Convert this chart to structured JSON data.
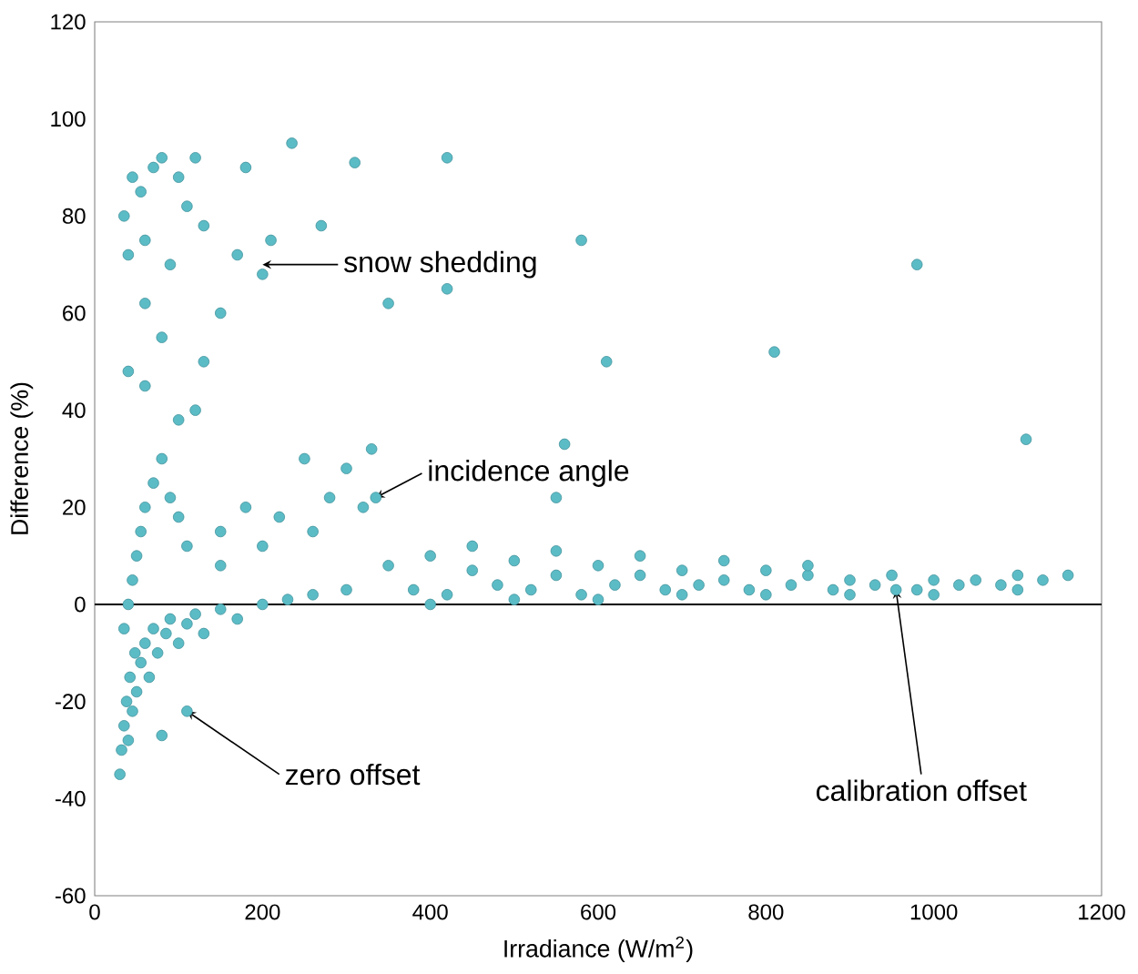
{
  "chart_data": {
    "type": "scatter",
    "xlabel": "Irradiance (W/m$^{2}$)",
    "ylabel": "Difference (%)",
    "x": [
      30,
      32,
      35,
      38,
      40,
      42,
      45,
      48,
      50,
      55,
      60,
      65,
      70,
      75,
      80,
      85,
      90,
      100,
      110,
      120,
      130,
      150,
      170,
      200,
      230,
      260,
      300,
      35,
      40,
      45,
      50,
      55,
      60,
      70,
      80,
      90,
      100,
      110,
      120,
      40,
      60,
      100,
      150,
      180,
      220,
      250,
      280,
      300,
      330,
      320,
      260,
      200,
      150,
      35,
      40,
      45,
      55,
      60,
      70,
      80,
      90,
      100,
      110,
      120,
      130,
      150,
      170,
      180,
      200,
      210,
      235,
      270,
      310,
      350,
      420,
      420,
      580,
      610,
      810,
      980,
      1110,
      560,
      550,
      130,
      60,
      80,
      350,
      380,
      400,
      420,
      450,
      480,
      500,
      520,
      550,
      580,
      600,
      620,
      650,
      680,
      700,
      720,
      750,
      780,
      800,
      830,
      850,
      880,
      900,
      930,
      950,
      980,
      1000,
      1030,
      1050,
      1080,
      1100,
      1130,
      1160,
      400,
      500,
      600,
      700,
      800,
      900,
      1000,
      1100,
      450,
      550,
      650,
      750,
      850,
      335,
      110,
      955
    ],
    "values": [
      -35,
      -30,
      -25,
      -20,
      -28,
      -15,
      -22,
      -10,
      -18,
      -12,
      -8,
      -15,
      -5,
      -10,
      -27,
      -6,
      -3,
      -8,
      -4,
      -2,
      -6,
      -1,
      -3,
      0,
      1,
      2,
      3,
      -5,
      0,
      5,
      10,
      15,
      20,
      25,
      30,
      22,
      18,
      12,
      40,
      48,
      45,
      38,
      15,
      20,
      18,
      30,
      22,
      28,
      32,
      20,
      15,
      12,
      8,
      80,
      72,
      88,
      85,
      75,
      90,
      92,
      70,
      88,
      82,
      92,
      78,
      60,
      72,
      90,
      68,
      75,
      95,
      78,
      91,
      62,
      92,
      65,
      75,
      50,
      52,
      70,
      34,
      33,
      22,
      50,
      62,
      55,
      8,
      3,
      10,
      2,
      7,
      4,
      9,
      3,
      6,
      2,
      8,
      4,
      6,
      3,
      7,
      4,
      5,
      3,
      7,
      4,
      6,
      3,
      5,
      4,
      6,
      3,
      5,
      4,
      5,
      4,
      6,
      5,
      6,
      0,
      1,
      1,
      2,
      2,
      2,
      2,
      3,
      12,
      11,
      10,
      9,
      8,
      22,
      -22,
      3
    ],
    "color": "#5bbcc6",
    "marker": "circle",
    "xlim": [
      0,
      1200
    ],
    "xticks": [
      0,
      200,
      400,
      600,
      800,
      1000,
      1200
    ],
    "ylim": [
      -60,
      120
    ],
    "yticks": [
      -60,
      -40,
      -20,
      0,
      20,
      40,
      60,
      80,
      100,
      120
    ],
    "ref_lines": [
      {
        "axis": "y",
        "value": 0,
        "color": "#000000"
      }
    ],
    "annotations": [
      {
        "text": "snow shedding",
        "x": 200,
        "y": 70
      },
      {
        "text": "incidence angle",
        "x": 335,
        "y": 22
      },
      {
        "text": "zero offset",
        "x": 110,
        "y": -22
      },
      {
        "text": "calibration offset",
        "x": 955,
        "y": 3
      }
    ]
  }
}
